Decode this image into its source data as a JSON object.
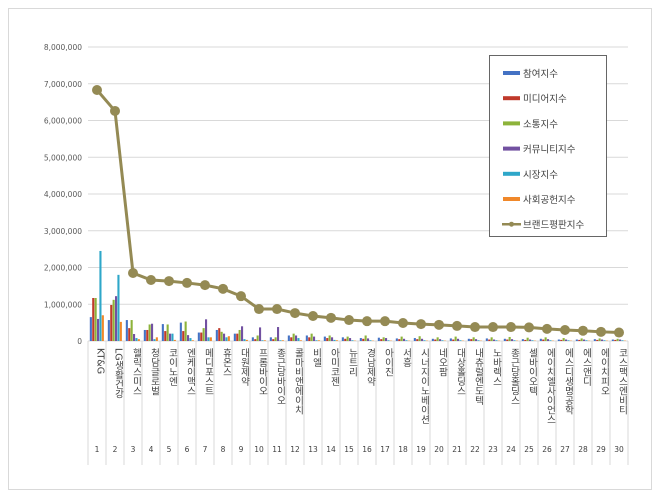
{
  "chart_data": {
    "type": "bar",
    "title": "",
    "xlabel": "",
    "ylabel": "",
    "ylim": [
      0,
      8000000
    ],
    "yticks": [
      "0",
      "1,000,000",
      "2,000,000",
      "3,000,000",
      "4,000,000",
      "5,000,000",
      "6,000,000",
      "7,000,000",
      "8,000,000"
    ],
    "grid": true,
    "legend_position": "top-right",
    "ranks": [
      "1",
      "2",
      "3",
      "4",
      "5",
      "6",
      "7",
      "8",
      "9",
      "10",
      "11",
      "12",
      "13",
      "14",
      "15",
      "16",
      "17",
      "18",
      "19",
      "20",
      "21",
      "22",
      "23",
      "24",
      "25",
      "26",
      "27",
      "28",
      "29",
      "30"
    ],
    "categories": [
      "KT&G",
      "LG생활건강",
      "헬릭스미스",
      "청담글로벌",
      "코이노엔",
      "엔케이맥스",
      "메디포스트",
      "휴온스",
      "대원제약",
      "프롬바이오",
      "종근당바이오",
      "콜마비앤에이치",
      "비엘",
      "아미코젠",
      "뉴트리",
      "경남제약",
      "아이진",
      "서흥",
      "시너지이노베이션",
      "네오팜",
      "대상홀딩스",
      "내츄럴엔도텍",
      "노바렉스",
      "종근당홀딩스",
      "셀바이오텍",
      "에이치엘사이언스",
      "에스디생명공학",
      "에스앤디",
      "에이치피오",
      "코스맥스엔비티"
    ],
    "series": [
      {
        "name": "참여지수",
        "type": "bar",
        "color": "#4472C4",
        "values": [
          650000,
          570000,
          570000,
          300000,
          460000,
          500000,
          230000,
          300000,
          200000,
          100000,
          100000,
          150000,
          150000,
          120000,
          100000,
          80000,
          90000,
          70000,
          80000,
          60000,
          70000,
          60000,
          70000,
          60000,
          50000,
          60000,
          40000,
          40000,
          50000,
          40000
        ]
      },
      {
        "name": "미디어지수",
        "type": "bar",
        "color": "#C0392B",
        "values": [
          1170000,
          980000,
          350000,
          300000,
          270000,
          270000,
          230000,
          350000,
          200000,
          50000,
          50000,
          100000,
          100000,
          80000,
          60000,
          60000,
          50000,
          50000,
          50000,
          40000,
          40000,
          50000,
          40000,
          40000,
          30000,
          40000,
          30000,
          30000,
          30000,
          30000
        ]
      },
      {
        "name": "소통지수",
        "type": "bar",
        "color": "#8DB33A",
        "values": [
          1170000,
          1120000,
          570000,
          450000,
          450000,
          530000,
          350000,
          250000,
          300000,
          150000,
          100000,
          200000,
          200000,
          150000,
          120000,
          150000,
          100000,
          120000,
          130000,
          100000,
          120000,
          100000,
          100000,
          110000,
          90000,
          100000,
          80000,
          70000,
          70000,
          60000
        ]
      },
      {
        "name": "커뮤니티지수",
        "type": "bar",
        "color": "#7251A1",
        "values": [
          600000,
          1220000,
          190000,
          470000,
          200000,
          160000,
          590000,
          200000,
          400000,
          370000,
          380000,
          150000,
          120000,
          100000,
          80000,
          70000,
          80000,
          60000,
          60000,
          50000,
          60000,
          50000,
          40000,
          50000,
          40000,
          50000,
          40000,
          40000,
          40000,
          40000
        ]
      },
      {
        "name": "시장지수",
        "type": "bar",
        "color": "#2EA7C9",
        "values": [
          2450000,
          1800000,
          80000,
          50000,
          200000,
          80000,
          100000,
          100000,
          50000,
          20000,
          20000,
          80000,
          20000,
          30000,
          20000,
          20000,
          20000,
          20000,
          20000,
          20000,
          20000,
          20000,
          20000,
          20000,
          20000,
          20000,
          20000,
          20000,
          20000,
          20000
        ]
      },
      {
        "name": "사회공헌지수",
        "type": "bar",
        "color": "#F0882A",
        "values": [
          700000,
          520000,
          50000,
          100000,
          30000,
          20000,
          100000,
          130000,
          30000,
          20000,
          20000,
          20000,
          20000,
          20000,
          10000,
          10000,
          10000,
          10000,
          10000,
          10000,
          10000,
          10000,
          10000,
          10000,
          10000,
          10000,
          10000,
          10000,
          10000,
          10000
        ]
      },
      {
        "name": "브랜드평판지수",
        "type": "line",
        "color": "#948A54",
        "values": [
          6830000,
          6260000,
          1850000,
          1660000,
          1630000,
          1580000,
          1520000,
          1420000,
          1220000,
          870000,
          870000,
          760000,
          680000,
          630000,
          570000,
          540000,
          540000,
          490000,
          460000,
          440000,
          410000,
          380000,
          380000,
          380000,
          370000,
          330000,
          300000,
          280000,
          250000,
          230000
        ]
      }
    ]
  }
}
